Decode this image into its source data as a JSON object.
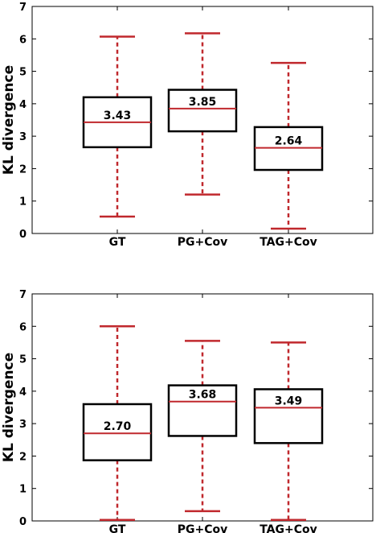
{
  "chart_data": [
    {
      "type": "box",
      "title": "",
      "xlabel": "",
      "ylabel": "KL divergence",
      "ylim": [
        0,
        7
      ],
      "yticks": [
        "0",
        "1",
        "2",
        "3",
        "4",
        "5",
        "6",
        "7"
      ],
      "categories": [
        "GT",
        "PG+Cov",
        "TAG+Cov"
      ],
      "boxes": [
        {
          "whisker_low": 0.52,
          "q1": 2.66,
          "median": 3.43,
          "q3": 4.2,
          "whisker_high": 6.07,
          "median_label": "3.43"
        },
        {
          "whisker_low": 1.2,
          "q1": 3.15,
          "median": 3.85,
          "q3": 4.43,
          "whisker_high": 6.17,
          "median_label": "3.85"
        },
        {
          "whisker_low": 0.15,
          "q1": 1.96,
          "median": 2.64,
          "q3": 3.28,
          "whisker_high": 5.26,
          "median_label": "2.64"
        }
      ],
      "colors": {
        "box": "#000000",
        "median": "#c0282d",
        "whisker": "#c0282d"
      },
      "grid": false
    },
    {
      "type": "box",
      "title": "",
      "xlabel": "",
      "ylabel": "KL divergence",
      "ylim": [
        0,
        7
      ],
      "yticks": [
        "0",
        "1",
        "2",
        "3",
        "4",
        "5",
        "6",
        "7"
      ],
      "categories": [
        "GT",
        "PG+Cov",
        "TAG+Cov"
      ],
      "boxes": [
        {
          "whisker_low": 0.03,
          "q1": 1.87,
          "median": 2.7,
          "q3": 3.6,
          "whisker_high": 6.0,
          "median_label": "2.70"
        },
        {
          "whisker_low": 0.3,
          "q1": 2.62,
          "median": 3.68,
          "q3": 4.18,
          "whisker_high": 5.55,
          "median_label": "3.68"
        },
        {
          "whisker_low": 0.03,
          "q1": 2.4,
          "median": 3.49,
          "q3": 4.06,
          "whisker_high": 5.5,
          "median_label": "3.49"
        }
      ],
      "colors": {
        "box": "#000000",
        "median": "#c0282d",
        "whisker": "#c0282d"
      },
      "grid": false
    }
  ]
}
